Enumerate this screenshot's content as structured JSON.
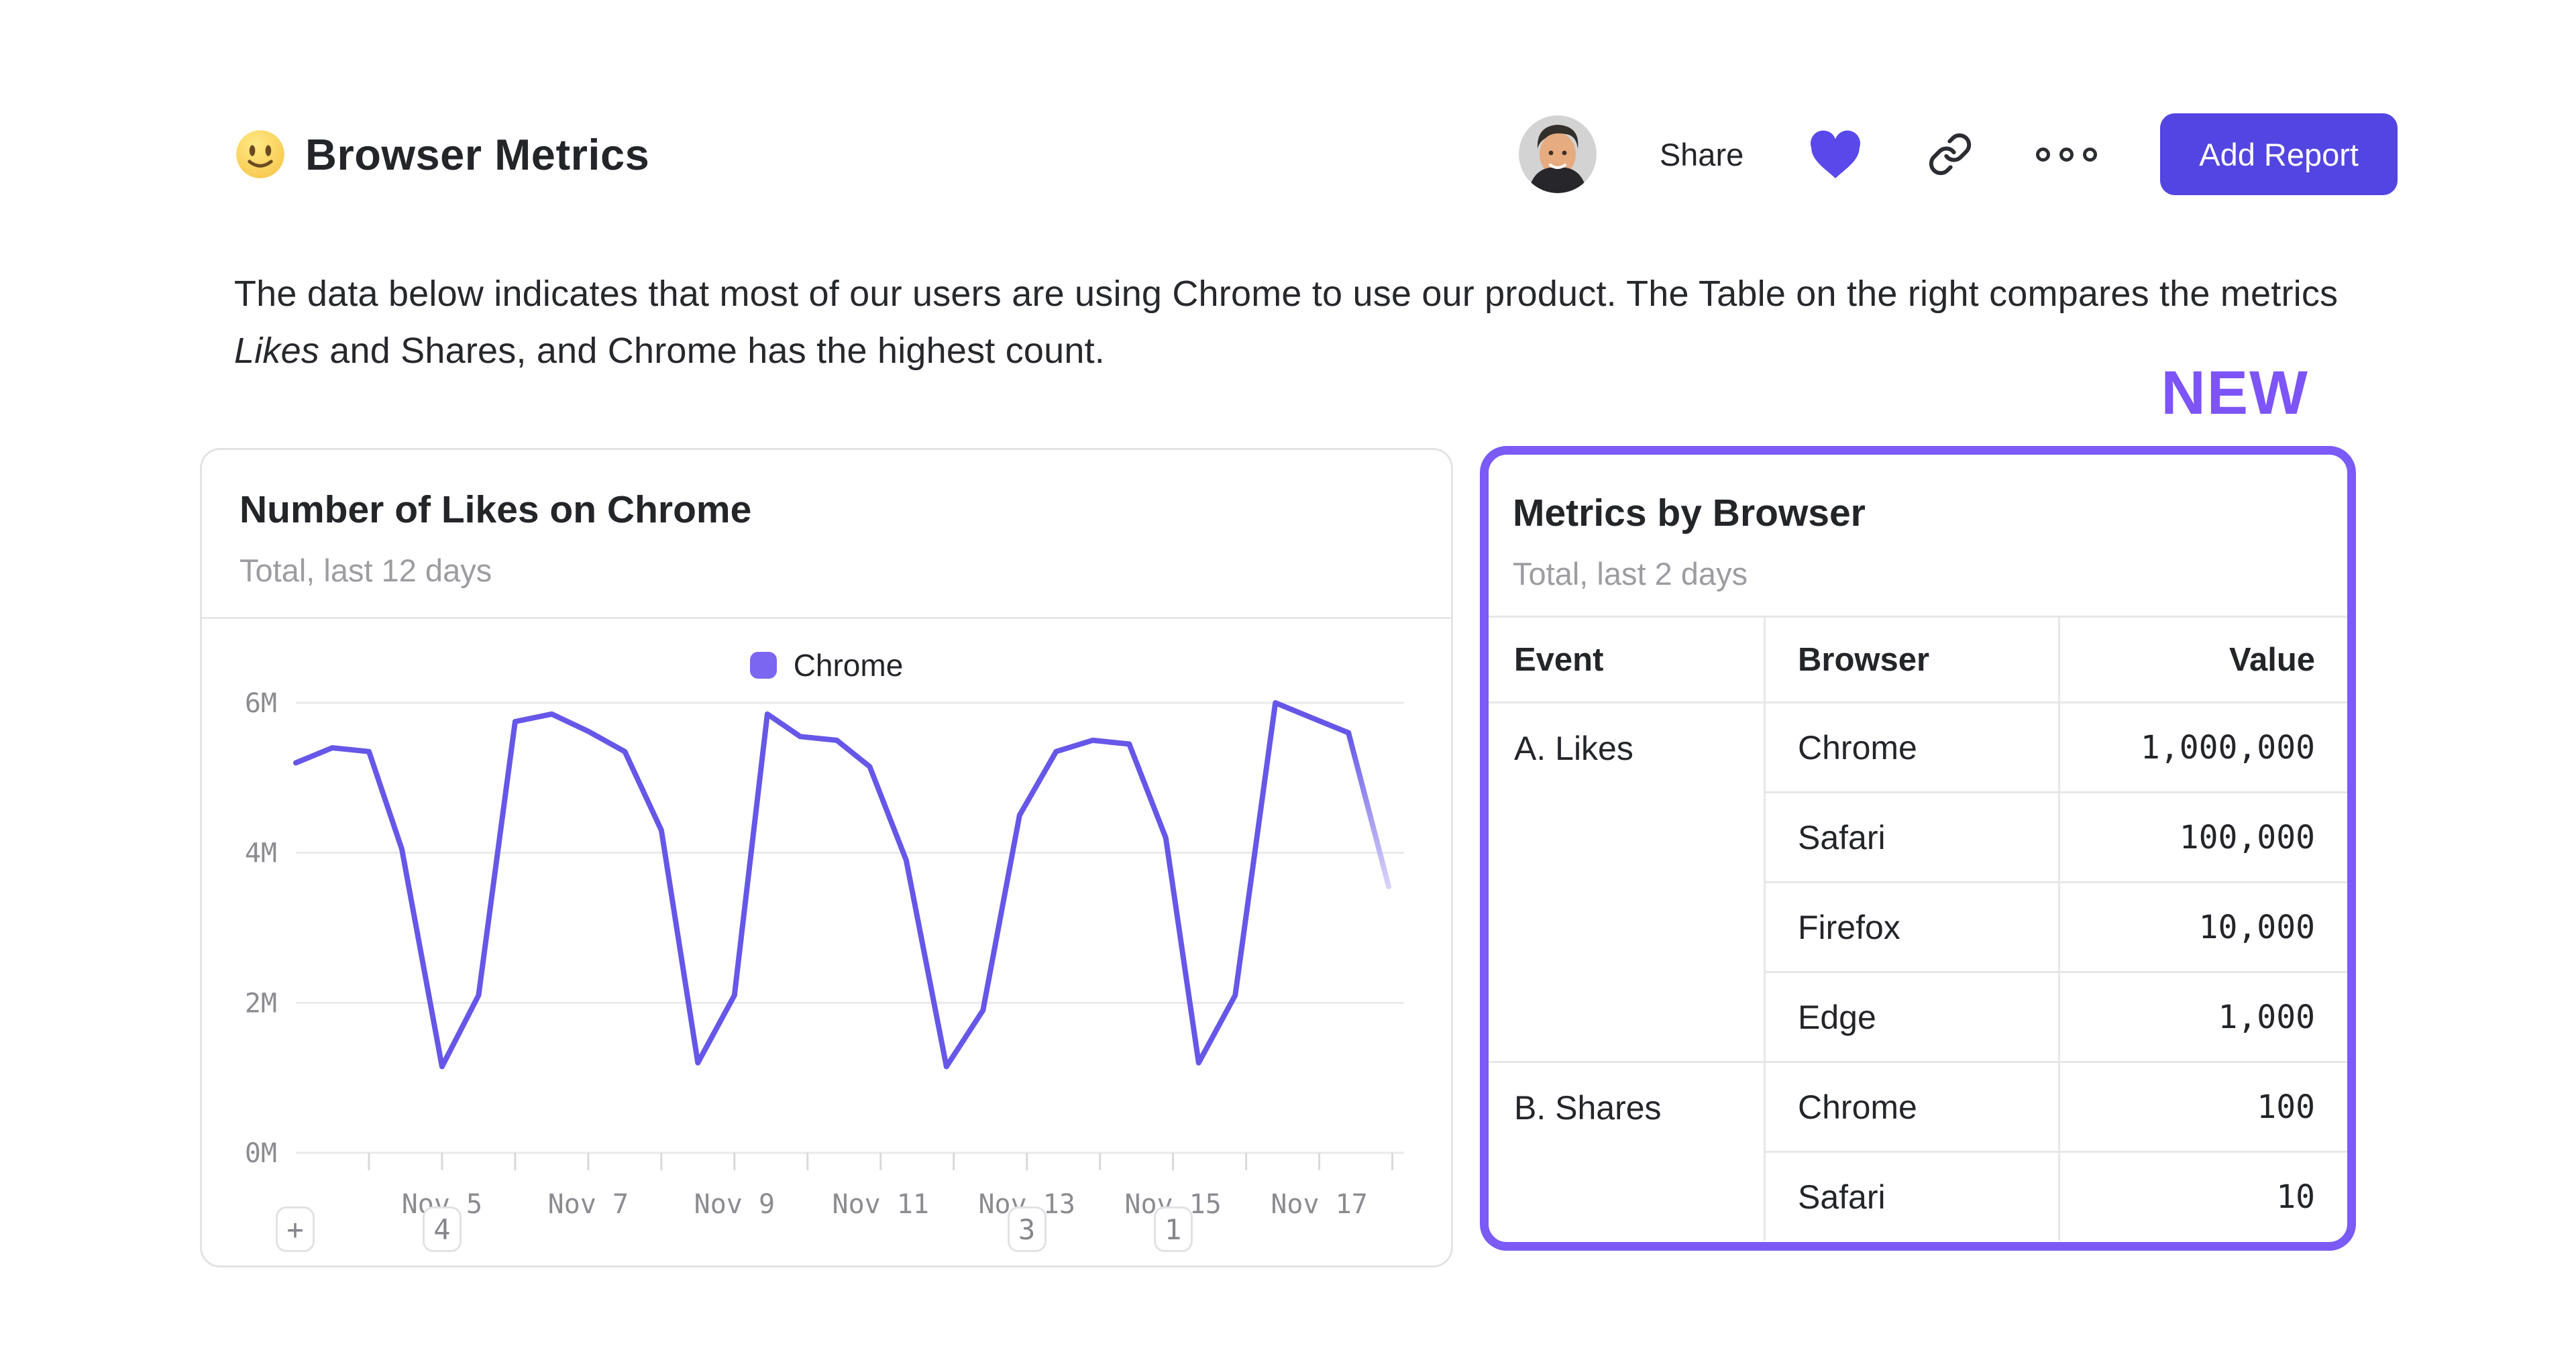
{
  "colors": {
    "accent_button": "#5345e1",
    "heart": "#5a49ea",
    "icon_dark": "#2b2d33",
    "text_dark": "#232529",
    "text_gray": "#9c9ca1",
    "axis_gray": "#8b8b90",
    "line_purple": "#6657e8",
    "line_fade": "#d9d4f8",
    "legend_swatch": "#7a66f0",
    "new_purple": "#7d54f6",
    "card_border_purple": "#7b5af5",
    "card_border_gray": "#e3e3e6",
    "grid_line": "#eaeaec",
    "table_line": "#e7e7ea"
  },
  "header": {
    "title": "Browser Metrics",
    "share_label": "Share",
    "add_report_label": "Add Report"
  },
  "description": {
    "part1": "The data below indicates that most of our users are using Chrome to use our product. The Table on the right compares the metrics ",
    "italic": "Likes",
    "part2": " and Shares, and Chrome has the highest count."
  },
  "new_label": "NEW",
  "likes_card": {
    "title": "Number of Likes on Chrome",
    "subtitle": "Total, last 12 days",
    "legend": "Chrome",
    "add_annotation_label": "+",
    "annotations": [
      {
        "label": "4",
        "day": 5
      },
      {
        "label": "3",
        "day": 13
      },
      {
        "label": "1",
        "day": 15
      }
    ]
  },
  "chart_data": {
    "type": "line",
    "title": "Number of Likes on Chrome",
    "subtitle": "Total, last 12 days",
    "x_axis": "date (November)",
    "unit": "likes, millions",
    "grid": "horizontal",
    "legend_position": "top-center",
    "x_domain": [
      3.0,
      18.16
    ],
    "y_domain_millions": [
      0,
      6
    ],
    "y_ticks": [
      {
        "label": "0M",
        "value": 0
      },
      {
        "label": "2M",
        "value": 2
      },
      {
        "label": "4M",
        "value": 4
      },
      {
        "label": "6M",
        "value": 6
      }
    ],
    "x_ticks": [
      {
        "label": "Nov 5",
        "day": 5
      },
      {
        "label": "Nov 7",
        "day": 7
      },
      {
        "label": "Nov 9",
        "day": 9
      },
      {
        "label": "Nov 11",
        "day": 11
      },
      {
        "label": "Nov 13",
        "day": 13
      },
      {
        "label": "Nov 15",
        "day": 15
      },
      {
        "label": "Nov 17",
        "day": 17
      }
    ],
    "minor_tick_days": [
      4,
      5,
      6,
      7,
      8,
      9,
      10,
      11,
      12,
      13,
      14,
      15,
      16,
      17,
      18
    ],
    "series": [
      {
        "name": "Chrome",
        "color": "#6657e8",
        "faded_tail": true,
        "points_day_millions": [
          [
            3.0,
            5.2
          ],
          [
            3.5,
            5.4
          ],
          [
            4.0,
            5.35
          ],
          [
            4.45,
            4.05
          ],
          [
            5.0,
            1.15
          ],
          [
            5.5,
            2.1
          ],
          [
            6.0,
            5.75
          ],
          [
            6.5,
            5.85
          ],
          [
            7.0,
            5.62
          ],
          [
            7.5,
            5.35
          ],
          [
            8.0,
            4.3
          ],
          [
            8.5,
            1.2
          ],
          [
            9.0,
            2.1
          ],
          [
            9.45,
            5.85
          ],
          [
            9.9,
            5.55
          ],
          [
            10.4,
            5.5
          ],
          [
            10.85,
            5.15
          ],
          [
            11.35,
            3.9
          ],
          [
            11.9,
            1.15
          ],
          [
            12.4,
            1.9
          ],
          [
            12.9,
            4.5
          ],
          [
            13.4,
            5.35
          ],
          [
            13.9,
            5.5
          ],
          [
            14.4,
            5.45
          ],
          [
            14.9,
            4.2
          ],
          [
            15.35,
            1.2
          ],
          [
            15.85,
            2.1
          ],
          [
            16.4,
            6.0
          ],
          [
            16.9,
            5.8
          ],
          [
            17.4,
            5.6
          ],
          [
            17.95,
            3.55
          ]
        ]
      }
    ]
  },
  "metrics_table": {
    "title": "Metrics by Browser",
    "subtitle": "Total, last 2 days",
    "columns": [
      "Event",
      "Browser",
      "Value"
    ],
    "groups": [
      {
        "event": "A. Likes",
        "rows": [
          {
            "browser": "Chrome",
            "value": "1,000,000"
          },
          {
            "browser": "Safari",
            "value": "100,000"
          },
          {
            "browser": "Firefox",
            "value": "10,000"
          },
          {
            "browser": "Edge",
            "value": "1,000"
          }
        ]
      },
      {
        "event": "B. Shares",
        "rows": [
          {
            "browser": "Chrome",
            "value": "100"
          },
          {
            "browser": "Safari",
            "value": "10"
          }
        ]
      }
    ]
  }
}
